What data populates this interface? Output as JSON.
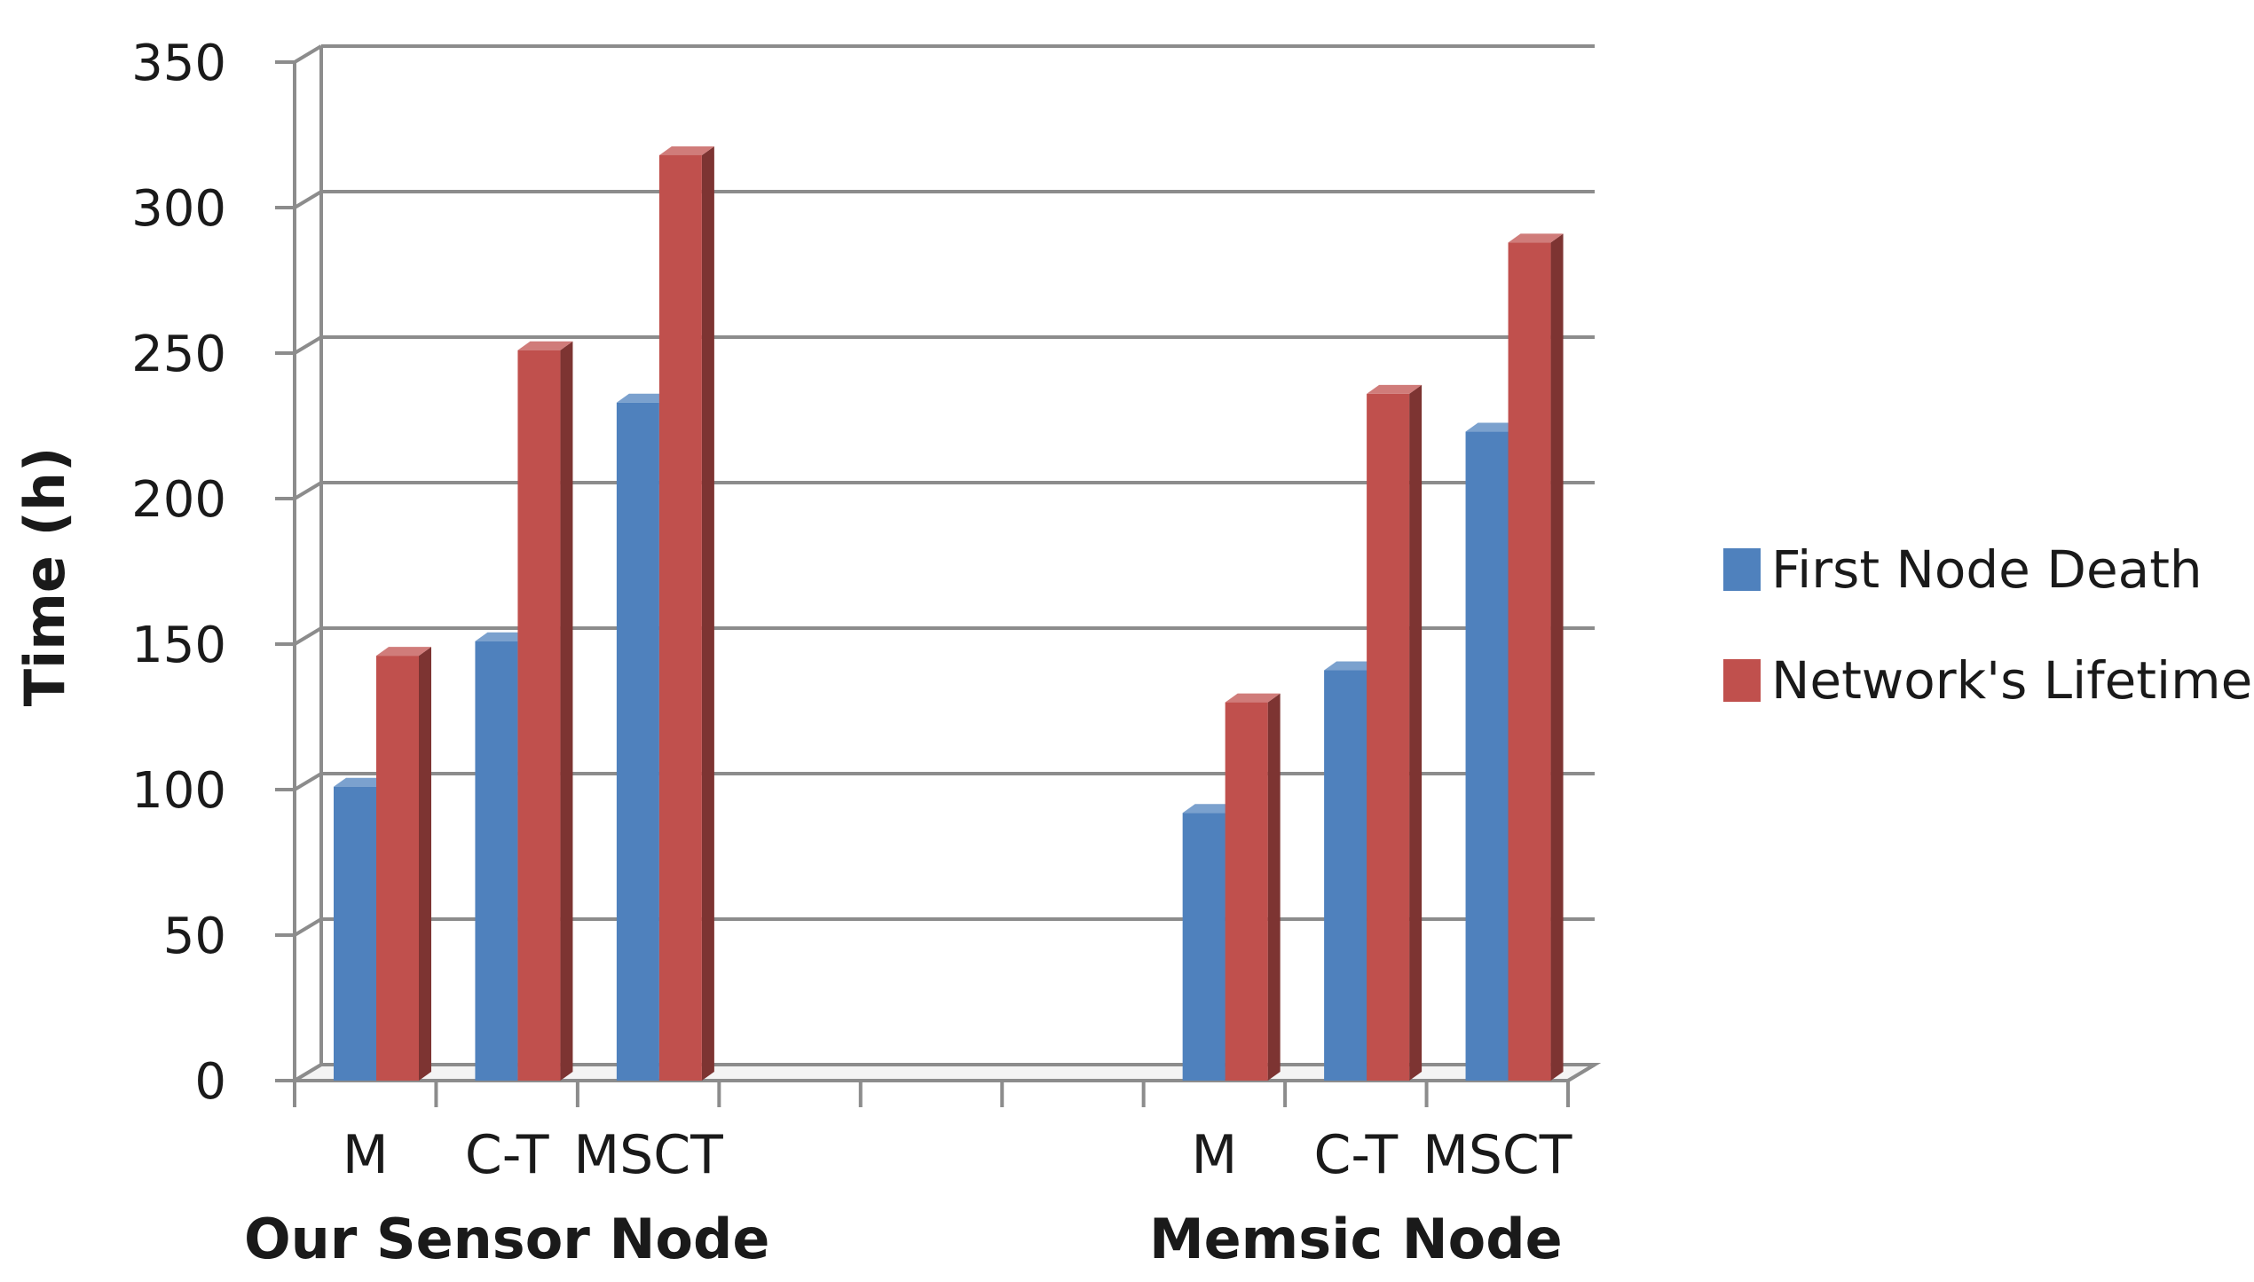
{
  "chart_data": {
    "type": "bar",
    "style": "3d-clustered-column",
    "ylabel": "Time (h)",
    "ylim": [
      0,
      350
    ],
    "yticks": [
      0,
      50,
      100,
      150,
      200,
      250,
      300,
      350
    ],
    "grid": true,
    "legend_position": "right",
    "groups": [
      {
        "name": "Our Sensor Node",
        "categories": [
          "M",
          "C-T",
          "MSCT"
        ]
      },
      {
        "name": "Memsic Node",
        "categories": [
          "M",
          "C-T",
          "MSCT"
        ]
      }
    ],
    "series": [
      {
        "name": "First Node Death",
        "color": "#4f81bd",
        "values": [
          [
            101,
            151,
            233
          ],
          [
            92,
            141,
            223
          ]
        ]
      },
      {
        "name": "Network's Lifetime",
        "color": "#c0504d",
        "values": [
          [
            146,
            251,
            318
          ],
          [
            130,
            236,
            288
          ]
        ]
      }
    ]
  },
  "colors": {
    "grid": "#8c8c8c",
    "axis": "#8c8c8c",
    "text": "#1a1a1a"
  }
}
